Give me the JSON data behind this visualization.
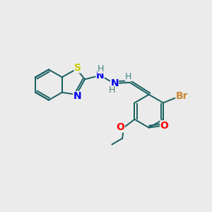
{
  "background_color": "#ebebeb",
  "atom_colors": {
    "S": "#cccc00",
    "N": "#0000ee",
    "O": "#ff0000",
    "Br": "#cc8833",
    "C": "#1a6060",
    "H": "#408080",
    "bond": "#1a6060"
  },
  "figsize": [
    3.0,
    3.0
  ],
  "dpi": 100
}
